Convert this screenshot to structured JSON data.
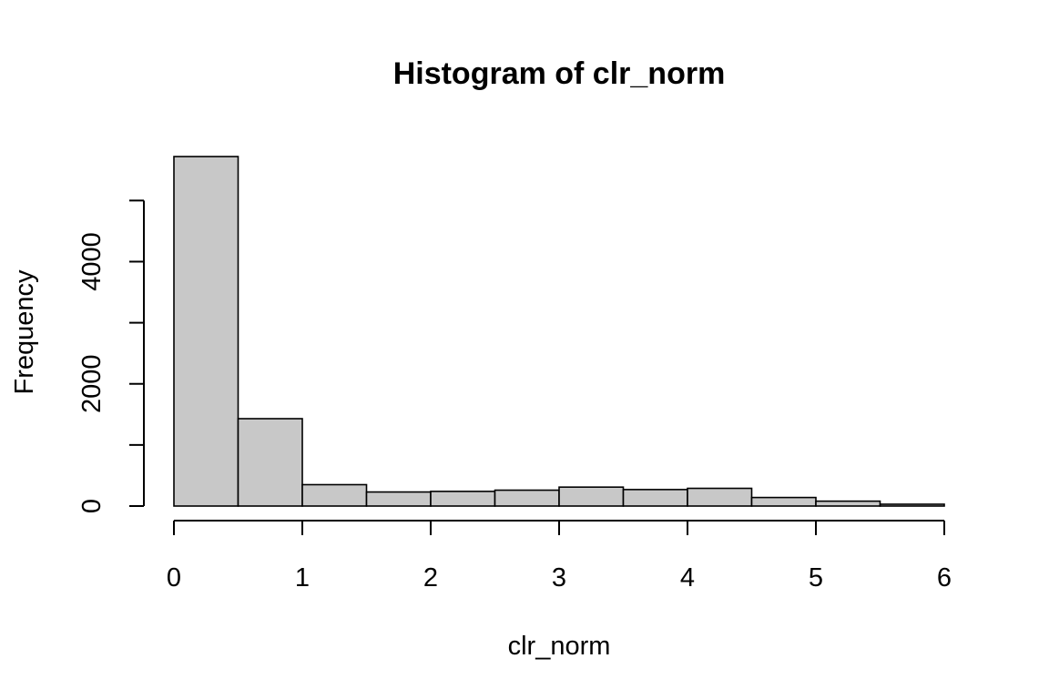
{
  "chart_data": {
    "type": "bar",
    "title": "Histogram of clr_norm",
    "xlabel": "clr_norm",
    "ylabel": "Frequency",
    "bin_edges": [
      0,
      0.5,
      1,
      1.5,
      2,
      2.5,
      3,
      3.5,
      4,
      4.5,
      5,
      5.5,
      6
    ],
    "values": [
      5720,
      1430,
      350,
      230,
      240,
      260,
      310,
      270,
      290,
      140,
      80,
      30
    ],
    "xlim": [
      0,
      6
    ],
    "ylim": [
      0,
      5720
    ],
    "x_ticks": [
      0,
      1,
      2,
      3,
      4,
      5,
      6
    ],
    "x_tick_labels": [
      "0",
      "1",
      "2",
      "3",
      "4",
      "5",
      "6"
    ],
    "y_ticks": [
      0,
      1000,
      2000,
      3000,
      4000,
      5000
    ],
    "y_tick_labels": [
      "0",
      "",
      "2000",
      "",
      "4000",
      ""
    ],
    "grid": false,
    "bar_color": "#c8c8c8",
    "edge_color": "#000000"
  }
}
